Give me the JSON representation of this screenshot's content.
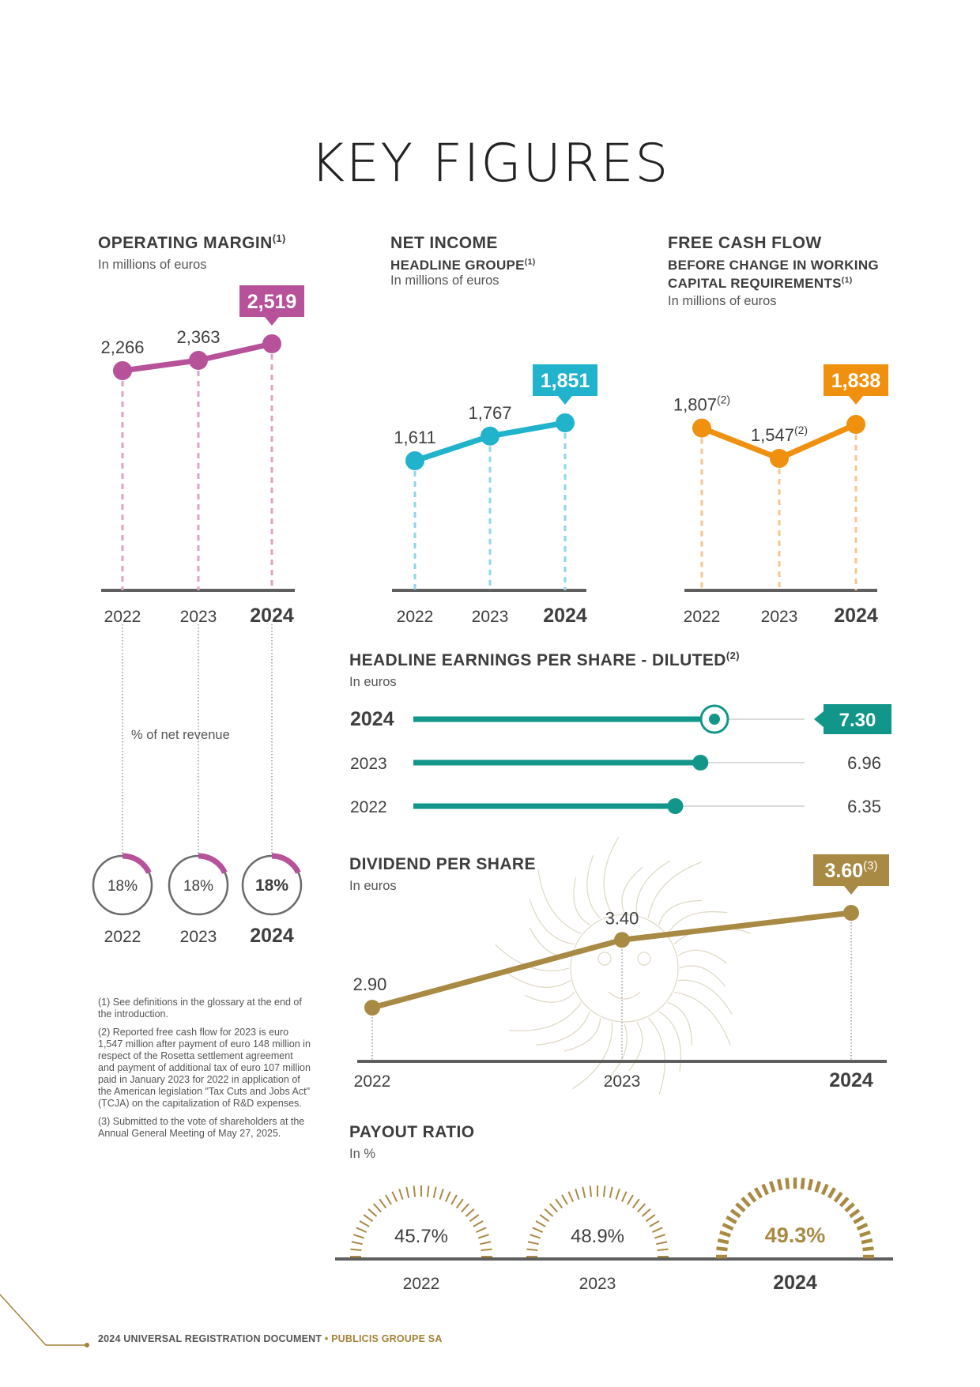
{
  "page_title": "KEY FIGURES",
  "colors": {
    "operating": "#b6519a",
    "netincome": "#21b3cc",
    "fcf": "#f0900f",
    "eps": "#12968a",
    "dividend": "#a98a44",
    "axis": "#5f5f5f",
    "gold": "#a48236"
  },
  "operating_margin": {
    "title": "OPERATING MARGIN",
    "title_sup": "(1)",
    "unit": "In millions of euros",
    "pct_label": "% of net revenue"
  },
  "net_income": {
    "title": "NET INCOME",
    "subtitle": "HEADLINE GROUPE",
    "subtitle_sup": "(1)",
    "unit": "In millions of euros"
  },
  "free_cash_flow": {
    "title": "FREE CASH FLOW",
    "subtitle_1": "BEFORE CHANGE IN WORKING",
    "subtitle_2": "CAPITAL REQUIREMENTS",
    "subtitle_sup": "(1)",
    "unit": "In millions of euros"
  },
  "eps": {
    "title": "HEADLINE EARNINGS PER SHARE - DILUTED",
    "title_sup": "(2)",
    "unit": "In euros"
  },
  "dividend": {
    "title": "DIVIDEND PER SHARE",
    "unit": "In euros"
  },
  "payout": {
    "title": "PAYOUT RATIO",
    "unit": "In %"
  },
  "footnotes": [
    "(1) See definitions in the glossary at the end of the introduction.",
    "(2) Reported free cash flow for 2023 is euro 1,547 million after payment of euro 148 million in respect of the Rosetta settlement agreement and payment of additional tax of euro 107 million paid in January 2023 for 2022 in application of the American legislation \"Tax Cuts and Jobs Act\" (TCJA) on the capitalization of R&D expenses.",
    "(3) Submitted to the vote of shareholders at the Annual General Meeting of May 27, 2025."
  ],
  "footer": {
    "doc": "2024 UNIVERSAL REGISTRATION DOCUMENT",
    "company": "PUBLICIS GROUPE SA"
  },
  "chart_data": [
    {
      "id": "operating_margin",
      "type": "line",
      "title": "OPERATING MARGIN",
      "x": [
        "2022",
        "2023",
        "2024"
      ],
      "values": [
        2266,
        2363,
        2519
      ],
      "labels": [
        "2,266",
        "2,363",
        "2,519"
      ],
      "unit": "In millions of euros"
    },
    {
      "id": "operating_margin_pct",
      "type": "pie",
      "title": "% of net revenue",
      "x": [
        "2022",
        "2023",
        "2024"
      ],
      "values": [
        18,
        18,
        18
      ],
      "labels": [
        "18%",
        "18%",
        "18%"
      ]
    },
    {
      "id": "net_income",
      "type": "line",
      "title": "NET INCOME",
      "x": [
        "2022",
        "2023",
        "2024"
      ],
      "values": [
        1611,
        1767,
        1851
      ],
      "labels": [
        "1,611",
        "1,767",
        "1,851"
      ],
      "unit": "In millions of euros"
    },
    {
      "id": "free_cash_flow",
      "type": "line",
      "title": "FREE CASH FLOW",
      "x": [
        "2022",
        "2023",
        "2024"
      ],
      "values": [
        1807,
        1547,
        1838
      ],
      "labels": [
        "1,807",
        "1,547",
        "1,838"
      ],
      "label_sups": [
        "(2)",
        "(2)",
        ""
      ],
      "unit": "In millions of euros"
    },
    {
      "id": "eps",
      "type": "bar",
      "title": "HEADLINE EARNINGS PER SHARE - DILUTED",
      "categories": [
        "2024",
        "2023",
        "2022"
      ],
      "values": [
        7.3,
        6.96,
        6.35
      ],
      "labels": [
        "7.30",
        "6.96",
        "6.35"
      ],
      "unit": "In euros"
    },
    {
      "id": "dividend",
      "type": "line",
      "title": "DIVIDEND PER SHARE",
      "x": [
        "2022",
        "2023",
        "2024"
      ],
      "values": [
        2.9,
        3.4,
        3.6
      ],
      "labels": [
        "2.90",
        "3.40",
        "3.60"
      ],
      "label_sups": [
        "",
        "",
        "(3)"
      ],
      "unit": "In euros"
    },
    {
      "id": "payout",
      "type": "pie",
      "title": "PAYOUT RATIO",
      "x": [
        "2022",
        "2023",
        "2024"
      ],
      "values": [
        45.7,
        48.9,
        49.3
      ],
      "labels": [
        "45.7%",
        "48.9%",
        "49.3%"
      ],
      "unit": "In %"
    }
  ]
}
